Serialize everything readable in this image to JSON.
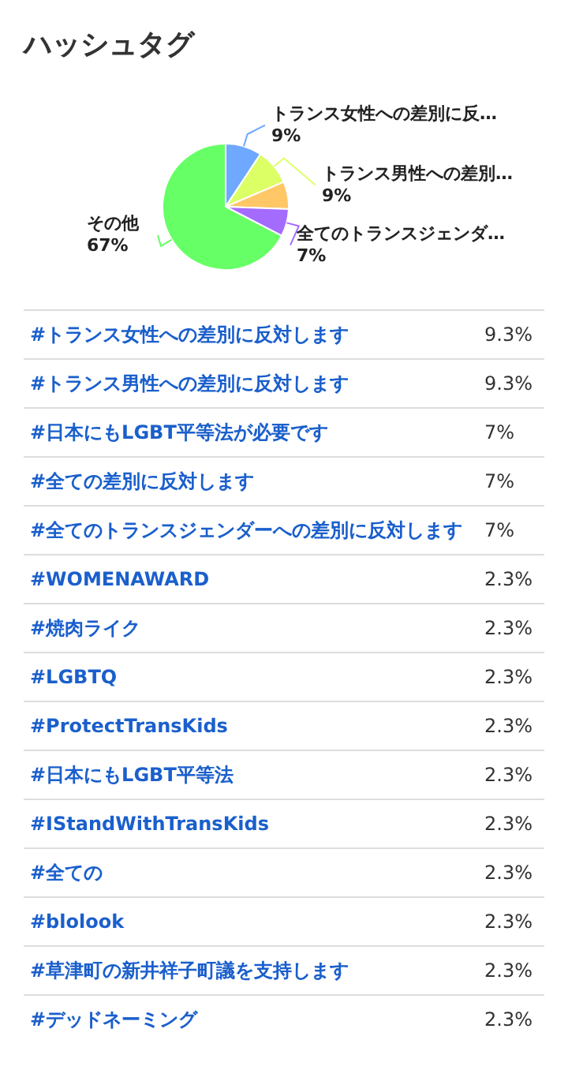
{
  "chart_data": [
    {
      "type": "pie",
      "title": "ハッシュタグ",
      "categories": [
        "トランス女性への差別に反…",
        "トランス男性への差別…",
        null,
        "全てのトランスジェンダ…",
        "その他"
      ],
      "values": [
        9.3,
        9.3,
        7,
        7,
        67.4
      ],
      "value_labels": [
        "9%",
        "9%",
        null,
        "7%",
        "67%"
      ],
      "colors": [
        "#6fa8ff",
        "#dcff66",
        "#ffc766",
        "#a46bff",
        "#66ff66"
      ]
    },
    {
      "type": "other",
      "categories": [
        "#トランス女性への差別に反対します",
        "#トランス男性への差別に反対します",
        "#日本にもLGBT平等法が必要です",
        "#全ての差別に反対します",
        "#全てのトランスジェンダーへの差別に反対します",
        "#WOMENAWARD",
        "#焼肉ライク",
        "#LGBTQ",
        "#ProtectTransKids",
        "#日本にもLGBT平等法",
        "#IStandWithTransKids",
        "#全ての",
        "#blolook",
        "#草津町の新井祥子町議を支持します",
        "#デッドネーミング"
      ],
      "value_labels": [
        "9.3%",
        "9.3%",
        "7%",
        "7%",
        "7%",
        "2.3%",
        "2.3%",
        "2.3%",
        "2.3%",
        "2.3%",
        "2.3%",
        "2.3%",
        "2.3%",
        "2.3%",
        "2.3%"
      ]
    }
  ]
}
